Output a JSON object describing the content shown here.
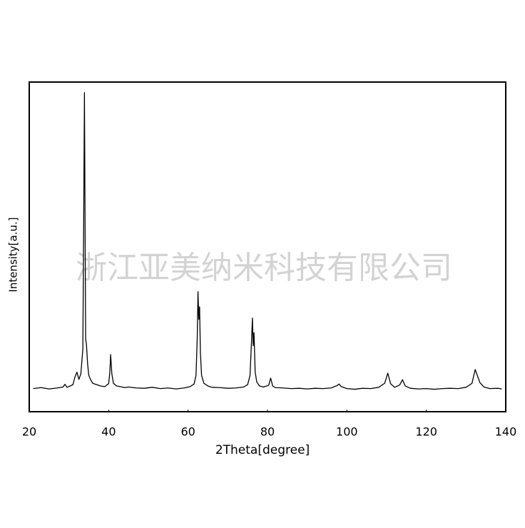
{
  "chart_data": {
    "type": "line",
    "xlabel": "2Theta[degree]",
    "ylabel": "Intensity[a.u.]",
    "annotation": "浙江亚美纳米科技有限公司",
    "xlim": [
      20,
      140
    ],
    "xticks": [
      20,
      40,
      60,
      80,
      100,
      120,
      140
    ],
    "ylim": [
      0,
      100
    ],
    "yticks": [],
    "grid": false,
    "x": [
      21,
      23,
      25,
      27,
      28.5,
      29,
      29.5,
      30.5,
      31,
      31.5,
      32,
      32.5,
      33,
      33.5,
      33.7,
      33.9,
      34.05,
      34.2,
      34.4,
      34.7,
      35,
      35.5,
      36,
      37,
      38,
      39,
      40,
      40.3,
      40.5,
      40.8,
      41.2,
      42,
      43,
      44,
      45,
      47,
      49,
      51,
      53,
      55,
      57,
      59,
      60.5,
      61.5,
      62,
      62.3,
      62.5,
      62.7,
      62.9,
      63.1,
      63.4,
      64,
      65,
      66,
      68,
      70,
      72,
      74,
      75,
      75.6,
      76,
      76.2,
      76.4,
      76.6,
      76.9,
      77.3,
      78,
      79,
      80.3,
      80.8,
      81.3,
      82,
      84,
      86,
      88,
      90,
      92,
      94,
      96,
      97.5,
      98,
      98.6,
      100,
      102,
      104,
      106,
      108,
      109.5,
      110.3,
      111,
      112,
      113.3,
      114,
      114.7,
      116,
      118,
      120,
      122,
      124,
      126,
      128,
      130,
      131.5,
      132.3,
      132.7,
      133.5,
      134.5,
      136,
      138,
      139
    ],
    "series": [
      {
        "color": "#000000",
        "values": [
          7.0,
          7.3,
          6.9,
          7.2,
          7.5,
          8.3,
          7.4,
          7.9,
          8.2,
          10.5,
          12.0,
          9.8,
          11.5,
          19.0,
          55.0,
          96.8,
          60,
          22,
          20.5,
          14.5,
          11.0,
          9.6,
          8.6,
          8.2,
          7.8,
          7.6,
          8.5,
          12,
          17.3,
          11.5,
          8.6,
          7.8,
          7.6,
          7.3,
          7.5,
          7.2,
          7.1,
          7.4,
          7.0,
          7.2,
          6.9,
          7.2,
          7.6,
          8.4,
          11,
          22,
          36.4,
          28,
          31.8,
          18,
          11,
          8.6,
          7.8,
          7.4,
          7.3,
          7.1,
          7.2,
          7.5,
          8.2,
          11,
          22,
          28.4,
          20,
          24,
          12,
          9,
          7.8,
          7.5,
          8.0,
          10.2,
          7.8,
          7.3,
          7.2,
          7.0,
          7.1,
          6.9,
          7.1,
          7.0,
          7.2,
          7.9,
          8.4,
          7.6,
          7.0,
          6.8,
          7.1,
          7.0,
          7.4,
          8.6,
          11.7,
          8.5,
          7.4,
          8.1,
          9.7,
          7.8,
          7.1,
          6.9,
          7.0,
          6.8,
          7.0,
          7.1,
          7.0,
          7.4,
          8.6,
          12.8,
          11.5,
          8.8,
          7.5,
          7.0,
          7.1,
          6.9
        ]
      }
    ]
  }
}
